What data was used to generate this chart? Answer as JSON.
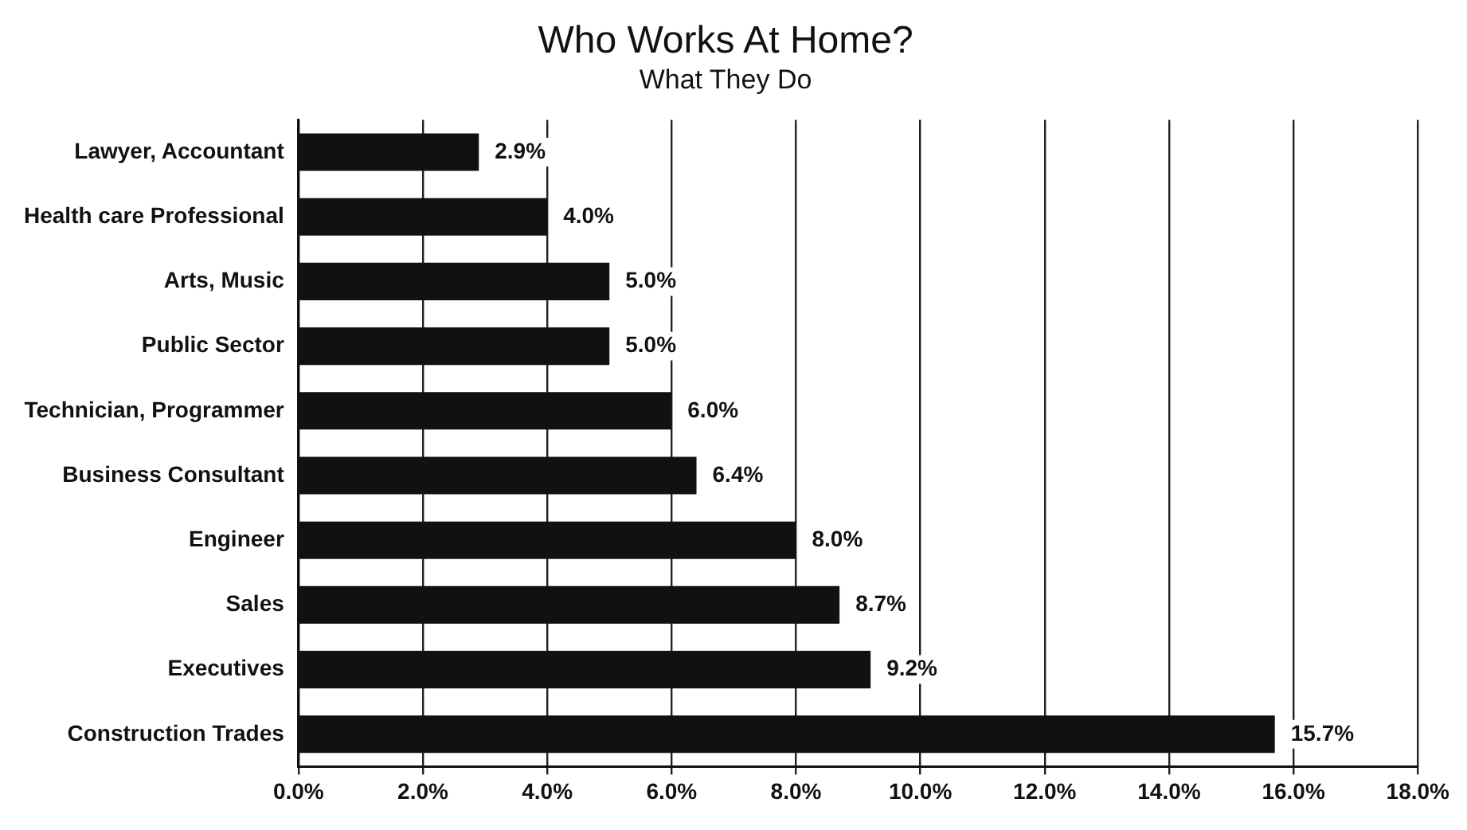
{
  "chart_data": {
    "type": "bar",
    "orientation": "horizontal",
    "title": "Who Works At Home?",
    "subtitle": "What They Do",
    "categories": [
      "Lawyer, Accountant",
      "Health care Professional",
      "Arts, Music",
      "Public Sector",
      "Technician, Programmer",
      "Business Consultant",
      "Engineer",
      "Sales",
      "Executives",
      "Construction Trades"
    ],
    "values": [
      2.9,
      4.0,
      5.0,
      5.0,
      6.0,
      6.4,
      8.0,
      8.7,
      9.2,
      15.7
    ],
    "value_labels": [
      "2.9%",
      "4.0%",
      "5.0%",
      "5.0%",
      "6.0%",
      "6.4%",
      "8.0%",
      "8.7%",
      "9.2%",
      "15.7%"
    ],
    "color": "#111111",
    "xlim": [
      0,
      18
    ],
    "xticks": [
      {
        "value": 0,
        "label": "0.0%"
      },
      {
        "value": 2,
        "label": "2.0%"
      },
      {
        "value": 4,
        "label": "4.0%"
      },
      {
        "value": 6,
        "label": "6.0%"
      },
      {
        "value": 8,
        "label": "8.0%"
      },
      {
        "value": 10,
        "label": "10.0%"
      },
      {
        "value": 12,
        "label": "12.0%"
      },
      {
        "value": 14,
        "label": "14.0%"
      },
      {
        "value": 16,
        "label": "16.0%"
      },
      {
        "value": 18,
        "label": "18.0%"
      }
    ],
    "grid": "x",
    "legend": false
  }
}
